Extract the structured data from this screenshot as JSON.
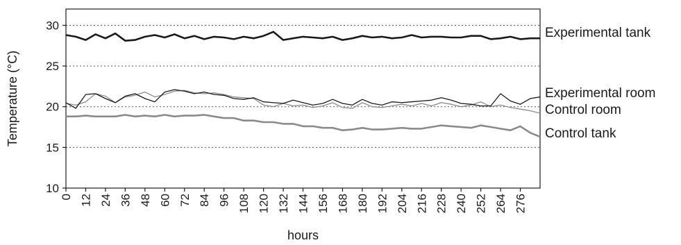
{
  "chart_data": {
    "type": "line",
    "title": "",
    "xlabel": "hours",
    "ylabel": "Temperature (°C)",
    "xlim": [
      0,
      288
    ],
    "ylim": [
      10,
      32
    ],
    "x_ticks": [
      0,
      12,
      24,
      36,
      48,
      60,
      72,
      84,
      96,
      108,
      120,
      132,
      144,
      156,
      168,
      180,
      192,
      204,
      216,
      228,
      240,
      252,
      264,
      276
    ],
    "y_ticks": [
      10,
      15,
      20,
      25,
      30
    ],
    "grid": "horizontal dotted at 15, 20, 25, 30",
    "legend": "labels at right end of each line",
    "series": [
      {
        "name": "Experimental tank",
        "color": "#1a1a1a",
        "style": "thick",
        "x": [
          0,
          6,
          12,
          18,
          24,
          30,
          36,
          42,
          48,
          54,
          60,
          66,
          72,
          78,
          84,
          90,
          96,
          102,
          108,
          114,
          120,
          126,
          132,
          138,
          144,
          150,
          156,
          162,
          168,
          174,
          180,
          186,
          192,
          198,
          204,
          210,
          216,
          222,
          228,
          234,
          240,
          246,
          252,
          258,
          264,
          270,
          276,
          282,
          288
        ],
        "y": [
          28.8,
          28.6,
          28.2,
          28.9,
          28.4,
          29.0,
          28.1,
          28.2,
          28.6,
          28.8,
          28.5,
          28.9,
          28.4,
          28.7,
          28.3,
          28.6,
          28.5,
          28.3,
          28.6,
          28.4,
          28.7,
          29.2,
          28.2,
          28.4,
          28.6,
          28.5,
          28.4,
          28.6,
          28.2,
          28.4,
          28.7,
          28.5,
          28.6,
          28.4,
          28.5,
          28.8,
          28.5,
          28.6,
          28.6,
          28.5,
          28.5,
          28.7,
          28.7,
          28.3,
          28.4,
          28.6,
          28.3,
          28.4,
          28.4
        ]
      },
      {
        "name": "Experimental room",
        "color": "#1a1a1a",
        "style": "thin",
        "x": [
          0,
          6,
          12,
          18,
          24,
          30,
          36,
          42,
          48,
          54,
          60,
          66,
          72,
          78,
          84,
          90,
          96,
          102,
          108,
          114,
          120,
          126,
          132,
          138,
          144,
          150,
          156,
          162,
          168,
          174,
          180,
          186,
          192,
          198,
          204,
          210,
          216,
          222,
          228,
          234,
          240,
          246,
          252,
          258,
          264,
          270,
          276,
          282,
          288
        ],
        "y": [
          20.5,
          19.8,
          21.5,
          21.6,
          21.0,
          20.5,
          21.3,
          21.6,
          21.0,
          20.6,
          21.8,
          22.1,
          21.9,
          21.6,
          21.8,
          21.5,
          21.4,
          21.0,
          20.9,
          21.1,
          20.6,
          20.5,
          20.4,
          20.8,
          20.5,
          20.2,
          20.4,
          20.9,
          20.4,
          20.2,
          20.9,
          20.4,
          20.2,
          20.6,
          20.5,
          20.6,
          20.7,
          20.8,
          21.1,
          20.8,
          20.4,
          20.3,
          20.1,
          20.1,
          21.6,
          20.7,
          20.3,
          21.0,
          21.2
        ]
      },
      {
        "name": "Control room",
        "color": "#8a8a8a",
        "style": "thin",
        "x": [
          0,
          6,
          12,
          18,
          24,
          30,
          36,
          42,
          48,
          54,
          60,
          66,
          72,
          78,
          84,
          90,
          96,
          102,
          108,
          114,
          120,
          126,
          132,
          138,
          144,
          150,
          156,
          162,
          168,
          174,
          180,
          186,
          192,
          198,
          204,
          210,
          216,
          222,
          228,
          234,
          240,
          246,
          252,
          258,
          264,
          270,
          276,
          282,
          288
        ],
        "y": [
          20.4,
          20.2,
          20.6,
          21.6,
          21.3,
          20.5,
          21.2,
          21.4,
          21.8,
          21.2,
          21.5,
          21.9,
          22.0,
          21.7,
          21.6,
          21.7,
          21.5,
          21.2,
          21.1,
          21.0,
          20.2,
          20.0,
          20.4,
          20.1,
          20.2,
          19.9,
          20.1,
          20.5,
          19.9,
          19.8,
          20.5,
          20.0,
          19.9,
          20.1,
          20.3,
          20.1,
          20.4,
          20.1,
          20.5,
          20.3,
          20.0,
          20.2,
          20.6,
          20.0,
          20.2,
          19.9,
          19.7,
          19.5,
          19.2
        ]
      },
      {
        "name": "Control tank",
        "color": "#8a8a8a",
        "style": "thick",
        "x": [
          0,
          6,
          12,
          18,
          24,
          30,
          36,
          42,
          48,
          54,
          60,
          66,
          72,
          78,
          84,
          90,
          96,
          102,
          108,
          114,
          120,
          126,
          132,
          138,
          144,
          150,
          156,
          162,
          168,
          174,
          180,
          186,
          192,
          198,
          204,
          210,
          216,
          222,
          228,
          234,
          240,
          246,
          252,
          258,
          264,
          270,
          276,
          282,
          288
        ],
        "y": [
          18.8,
          18.8,
          18.9,
          18.8,
          18.8,
          18.8,
          19.0,
          18.8,
          18.9,
          18.8,
          19.0,
          18.8,
          18.9,
          18.9,
          19.0,
          18.8,
          18.6,
          18.6,
          18.3,
          18.3,
          18.1,
          18.1,
          17.9,
          17.9,
          17.6,
          17.6,
          17.4,
          17.4,
          17.1,
          17.2,
          17.4,
          17.2,
          17.2,
          17.3,
          17.4,
          17.3,
          17.3,
          17.5,
          17.7,
          17.6,
          17.5,
          17.4,
          17.7,
          17.5,
          17.3,
          17.1,
          17.6,
          16.8,
          16.3
        ]
      }
    ]
  }
}
